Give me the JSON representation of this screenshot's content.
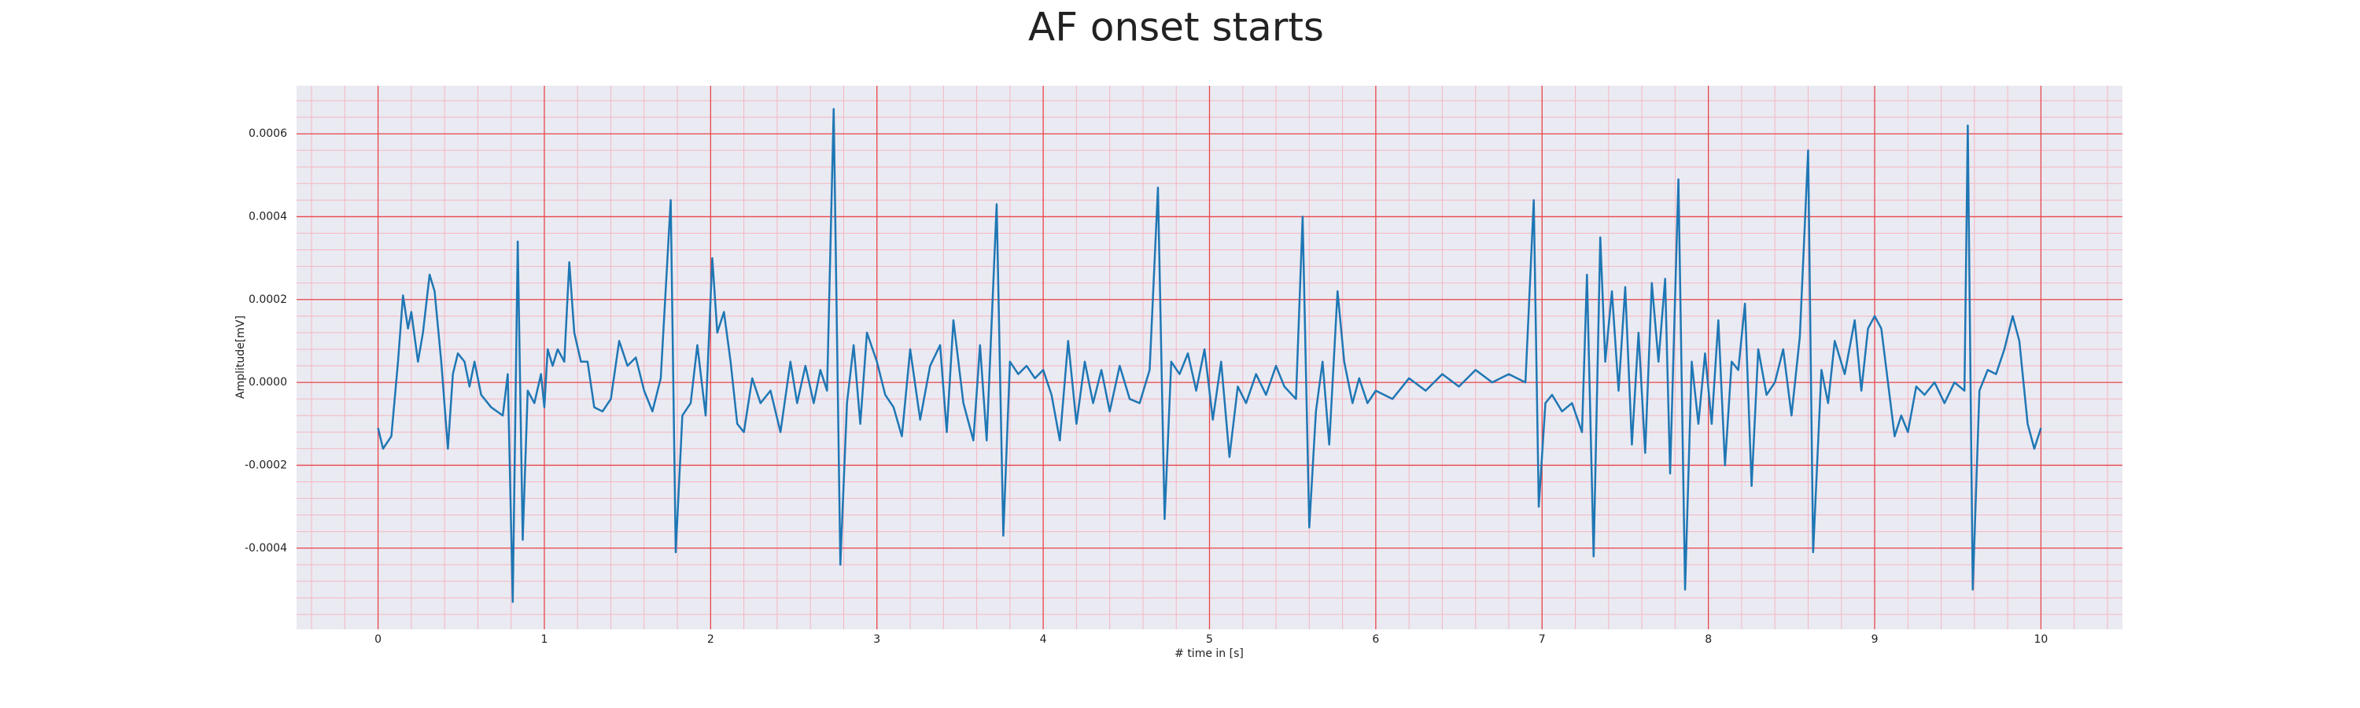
{
  "chart_data": {
    "type": "line",
    "title": "AF onset starts",
    "xlabel": "# time in [s]",
    "ylabel": "Amplitude[mV]",
    "x": [
      0,
      0.03,
      0.08,
      0.12,
      0.15,
      0.18,
      0.2,
      0.24,
      0.27,
      0.31,
      0.34,
      0.38,
      0.42,
      0.45,
      0.48,
      0.52,
      0.55,
      0.58,
      0.62,
      0.68,
      0.75,
      0.78,
      0.81,
      0.84,
      0.87,
      0.9,
      0.94,
      0.98,
      1.0,
      1.02,
      1.05,
      1.08,
      1.12,
      1.15,
      1.18,
      1.22,
      1.26,
      1.3,
      1.35,
      1.4,
      1.45,
      1.5,
      1.55,
      1.6,
      1.65,
      1.7,
      1.76,
      1.79,
      1.83,
      1.88,
      1.92,
      1.97,
      2.01,
      2.04,
      2.08,
      2.12,
      2.16,
      2.2,
      2.25,
      2.3,
      2.36,
      2.42,
      2.48,
      2.52,
      2.57,
      2.62,
      2.66,
      2.7,
      2.74,
      2.78,
      2.82,
      2.86,
      2.9,
      2.94,
      3.0,
      3.05,
      3.1,
      3.15,
      3.2,
      3.26,
      3.32,
      3.38,
      3.42,
      3.46,
      3.52,
      3.58,
      3.62,
      3.66,
      3.72,
      3.76,
      3.8,
      3.85,
      3.9,
      3.95,
      4.0,
      4.05,
      4.1,
      4.15,
      4.2,
      4.25,
      4.3,
      4.35,
      4.4,
      4.46,
      4.52,
      4.58,
      4.64,
      4.69,
      4.73,
      4.77,
      4.82,
      4.87,
      4.92,
      4.97,
      5.02,
      5.07,
      5.12,
      5.17,
      5.22,
      5.28,
      5.34,
      5.4,
      5.45,
      5.52,
      5.56,
      5.6,
      5.64,
      5.68,
      5.72,
      5.77,
      5.81,
      5.86,
      5.9,
      5.95,
      6.0,
      6.1,
      6.2,
      6.3,
      6.4,
      6.5,
      6.6,
      6.7,
      6.8,
      6.9,
      6.95,
      6.98,
      7.02,
      7.06,
      7.12,
      7.18,
      7.24,
      7.27,
      7.31,
      7.35,
      7.38,
      7.42,
      7.46,
      7.5,
      7.54,
      7.58,
      7.62,
      7.66,
      7.7,
      7.74,
      7.77,
      7.82,
      7.86,
      7.9,
      7.94,
      7.98,
      8.02,
      8.06,
      8.1,
      8.14,
      8.18,
      8.22,
      8.26,
      8.3,
      8.35,
      8.4,
      8.45,
      8.5,
      8.55,
      8.6,
      8.63,
      8.68,
      8.72,
      8.76,
      8.82,
      8.88,
      8.92,
      8.96,
      9.0,
      9.04,
      9.08,
      9.12,
      9.16,
      9.2,
      9.25,
      9.3,
      9.36,
      9.42,
      9.48,
      9.54,
      9.56,
      9.59,
      9.63,
      9.68,
      9.73,
      9.78,
      9.83,
      9.87,
      9.92,
      9.96,
      10.0
    ],
    "values": [
      -0.00011,
      -0.00016,
      -0.00013,
      5e-05,
      0.00021,
      0.00013,
      0.00017,
      5e-05,
      0.00012,
      0.00026,
      0.00022,
      5e-05,
      -0.00016,
      2e-05,
      7e-05,
      5e-05,
      -1e-05,
      5e-05,
      -3e-05,
      -6e-05,
      -8e-05,
      2e-05,
      -0.00053,
      0.00034,
      -0.00038,
      -2e-05,
      -5e-05,
      2e-05,
      -6e-05,
      8e-05,
      4e-05,
      8e-05,
      5e-05,
      0.00029,
      0.00012,
      5e-05,
      5e-05,
      -6e-05,
      -7e-05,
      -4e-05,
      0.0001,
      4e-05,
      6e-05,
      -2e-05,
      -7e-05,
      1e-05,
      0.00044,
      -0.00041,
      -8e-05,
      -5e-05,
      9e-05,
      -8e-05,
      0.0003,
      0.00012,
      0.00017,
      5e-05,
      -0.0001,
      -0.00012,
      1e-05,
      -5e-05,
      -2e-05,
      -0.00012,
      5e-05,
      -5e-05,
      4e-05,
      -5e-05,
      3e-05,
      -2e-05,
      0.00066,
      -0.00044,
      -5e-05,
      9e-05,
      -0.0001,
      0.00012,
      5e-05,
      -3e-05,
      -6e-05,
      -0.00013,
      8e-05,
      -9e-05,
      4e-05,
      9e-05,
      -0.00012,
      0.00015,
      -5e-05,
      -0.00014,
      9e-05,
      -0.00014,
      0.00043,
      -0.00037,
      5e-05,
      2e-05,
      4e-05,
      1e-05,
      3e-05,
      -3e-05,
      -0.00014,
      0.0001,
      -0.0001,
      5e-05,
      -5e-05,
      3e-05,
      -7e-05,
      4e-05,
      -4e-05,
      -5e-05,
      3e-05,
      0.00047,
      -0.00033,
      5e-05,
      2e-05,
      7e-05,
      -2e-05,
      8e-05,
      -9e-05,
      5e-05,
      -0.00018,
      -1e-05,
      -5e-05,
      2e-05,
      -3e-05,
      4e-05,
      -1e-05,
      -4e-05,
      0.0004,
      -0.00035,
      -7e-05,
      5e-05,
      -0.00015,
      0.00022,
      5e-05,
      -5e-05,
      1e-05,
      -5e-05,
      -2e-05,
      -4e-05,
      1e-05,
      -2e-05,
      2e-05,
      -1e-05,
      3e-05,
      0,
      2e-05,
      0,
      0.00044,
      -0.0003,
      -5e-05,
      -3e-05,
      -7e-05,
      -5e-05,
      -0.00012,
      0.00026,
      -0.00042,
      0.00035,
      5e-05,
      0.00022,
      -2e-05,
      0.00023,
      -0.00015,
      0.00012,
      -0.00017,
      0.00024,
      5e-05,
      0.00025,
      -0.00022,
      0.00049,
      -0.0005,
      5e-05,
      -0.0001,
      7e-05,
      -0.0001,
      0.00015,
      -0.0002,
      5e-05,
      3e-05,
      0.00019,
      -0.00025,
      8e-05,
      -3e-05,
      0,
      8e-05,
      -8e-05,
      0.00011,
      0.00056,
      -0.00041,
      3e-05,
      -5e-05,
      0.0001,
      2e-05,
      0.00015,
      -2e-05,
      0.00013,
      0.00016,
      0.00013,
      0,
      -0.00013,
      -8e-05,
      -0.00012,
      -1e-05,
      -3e-05,
      0,
      -5e-05,
      0,
      -2e-05,
      0.00062,
      -0.0005,
      -2e-05,
      3e-05,
      2e-05,
      8e-05,
      0.00016,
      0.0001,
      -0.0001,
      -0.00016,
      -0.00011
    ],
    "color": "#1f77b4",
    "xlim": [
      -0.49,
      10.49
    ],
    "ylim": [
      -0.000596,
      0.000716
    ],
    "xticks": [
      0,
      1,
      2,
      3,
      4,
      5,
      6,
      7,
      8,
      9,
      10
    ],
    "yticks": [
      -0.0004,
      -0.0002,
      {
        "value": 0,
        "label": "0.0000"
      },
      0.0002,
      0.0004,
      0.0006
    ],
    "grid": true,
    "minor_grid": {
      "x": 0.2,
      "y": 4e-05
    }
  }
}
